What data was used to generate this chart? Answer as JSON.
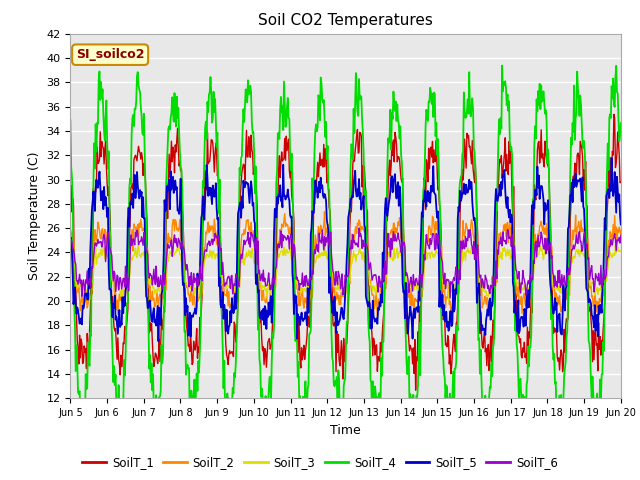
{
  "title": "Soil CO2 Temperatures",
  "xlabel": "Time",
  "ylabel": "Soil Temperature (C)",
  "ylim": [
    12,
    42
  ],
  "yticks": [
    12,
    14,
    16,
    18,
    20,
    22,
    24,
    26,
    28,
    30,
    32,
    34,
    36,
    38,
    40,
    42
  ],
  "xtick_labels": [
    "Jun 5",
    "Jun 6",
    "Jun 7",
    "Jun 8",
    "Jun 9",
    "Jun 10",
    "Jun 11",
    "Jun 12",
    "Jun 13",
    "Jun 14",
    "Jun 15",
    "Jun 16",
    "Jun 17",
    "Jun 18",
    "Jun 19",
    "Jun 20"
  ],
  "series_colors": {
    "SoilT_1": "#cc0000",
    "SoilT_2": "#ff8800",
    "SoilT_3": "#dddd00",
    "SoilT_4": "#00dd00",
    "SoilT_5": "#0000cc",
    "SoilT_6": "#9900cc"
  },
  "annotation_text": "SI_soilco2",
  "annotation_color": "#880000",
  "annotation_bg": "#ffffcc",
  "annotation_border": "#cc8800",
  "fig_bg_color": "#ffffff",
  "plot_bg_color": "#e8e8e8",
  "grid_color": "#ffffff",
  "legend_entries": [
    "SoilT_1",
    "SoilT_2",
    "SoilT_3",
    "SoilT_4",
    "SoilT_5",
    "SoilT_6"
  ]
}
